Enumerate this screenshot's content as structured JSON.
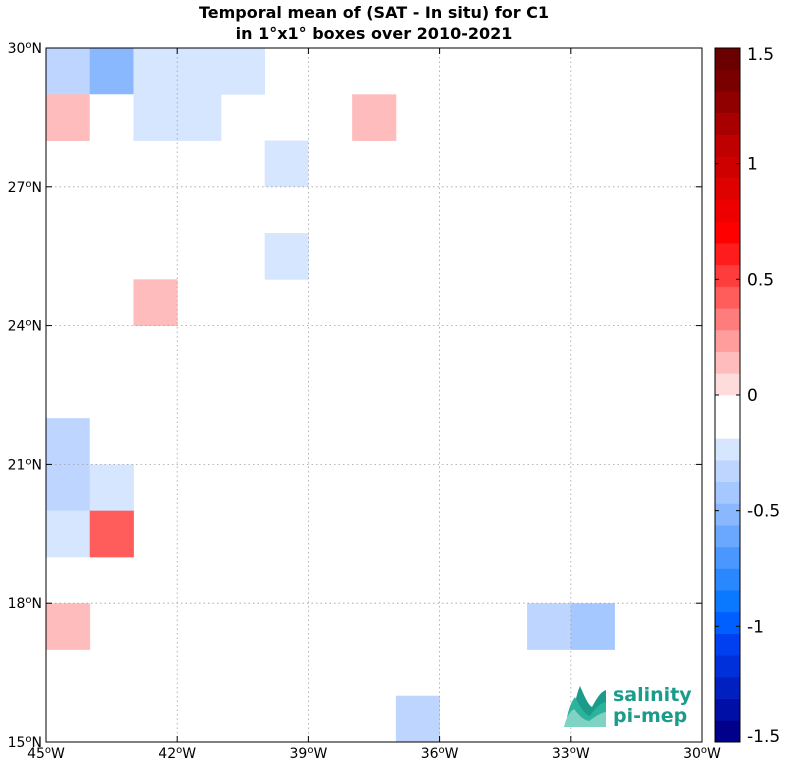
{
  "chart_data": {
    "type": "heatmap",
    "title": [
      "Temporal mean of (SAT - In situ) for C1",
      "in 1°x1° boxes over 2010-2021"
    ],
    "xlim": [
      -45,
      -30
    ],
    "ylim": [
      15,
      30
    ],
    "x_ticks": [
      {
        "value": -45,
        "deg": "45",
        "hemi": "W"
      },
      {
        "value": -42,
        "deg": "42",
        "hemi": "W"
      },
      {
        "value": -39,
        "deg": "39",
        "hemi": "W"
      },
      {
        "value": -36,
        "deg": "36",
        "hemi": "W"
      },
      {
        "value": -33,
        "deg": "33",
        "hemi": "W"
      },
      {
        "value": -30,
        "deg": "30",
        "hemi": "W"
      }
    ],
    "y_ticks": [
      {
        "value": 15,
        "deg": "15",
        "hemi": "N"
      },
      {
        "value": 18,
        "deg": "18",
        "hemi": "N"
      },
      {
        "value": 21,
        "deg": "21",
        "hemi": "N"
      },
      {
        "value": 24,
        "deg": "24",
        "hemi": "N"
      },
      {
        "value": 27,
        "deg": "27",
        "hemi": "N"
      },
      {
        "value": 30,
        "deg": "30",
        "hemi": "N"
      }
    ],
    "grid": true,
    "colorbar": {
      "min": -1.5,
      "max": 1.5,
      "ticks": [
        1.5,
        1,
        0.5,
        0,
        -0.5,
        -1,
        -1.5
      ],
      "tick_labels": [
        "1.5",
        "1",
        "0.5",
        "0",
        "-0.5",
        "-1",
        "-1.5"
      ],
      "colors_low_to_high": [
        "#00008b",
        "#0010a6",
        "#0020c0",
        "#0030da",
        "#0040f0",
        "#0060ff",
        "#0a78ff",
        "#2a88ff",
        "#4a98ff",
        "#6aa8ff",
        "#8ab8ff",
        "#a4c8ff",
        "#bed6ff",
        "#d6e6ff",
        "#ffffff",
        "#ffffff",
        "#ffdcdc",
        "#ffbcbc",
        "#ff9c9c",
        "#ff7c7c",
        "#ff5c5c",
        "#ff3c3c",
        "#ff1c1c",
        "#ff0000",
        "#ef0000",
        "#df0000",
        "#cf0000",
        "#bf0000",
        "#a80000",
        "#900000",
        "#7a0000",
        "#6a0000"
      ]
    },
    "cells": [
      {
        "lon": -45,
        "lat": 29,
        "value": -0.3
      },
      {
        "lon": -44,
        "lat": 29,
        "value": -0.5
      },
      {
        "lon": -43,
        "lat": 29,
        "value": -0.25
      },
      {
        "lon": -42,
        "lat": 29,
        "value": -0.25
      },
      {
        "lon": -41,
        "lat": 29,
        "value": -0.25
      },
      {
        "lon": -45,
        "lat": 28,
        "value": 0.15
      },
      {
        "lon": -44,
        "lat": 28,
        "value": -0.1
      },
      {
        "lon": -43,
        "lat": 28,
        "value": -0.25
      },
      {
        "lon": -42,
        "lat": 28,
        "value": -0.25
      },
      {
        "lon": -38,
        "lat": 28,
        "value": 0.15
      },
      {
        "lon": -40,
        "lat": 27,
        "value": -0.25
      },
      {
        "lon": -39,
        "lat": 27,
        "value": -0.1
      },
      {
        "lon": -31,
        "lat": 27,
        "value": -0.1
      },
      {
        "lon": -40,
        "lat": 26,
        "value": -0.1
      },
      {
        "lon": -32,
        "lat": 26,
        "value": -0.1
      },
      {
        "lon": -40,
        "lat": 25,
        "value": -0.25
      },
      {
        "lon": -32,
        "lat": 25,
        "value": -0.1
      },
      {
        "lon": -43,
        "lat": 24,
        "value": 0.15
      },
      {
        "lon": -41,
        "lat": 24,
        "value": -0.1
      },
      {
        "lon": -34,
        "lat": 24,
        "value": -0.1
      },
      {
        "lon": -44,
        "lat": 23,
        "value": -0.1
      },
      {
        "lon": -37,
        "lat": 23,
        "value": -0.1
      },
      {
        "lon": -33,
        "lat": 23,
        "value": -0.1
      },
      {
        "lon": -43,
        "lat": 22,
        "value": -0.1
      },
      {
        "lon": -42,
        "lat": 22,
        "value": -0.1
      },
      {
        "lon": -41,
        "lat": 22,
        "value": -0.1
      },
      {
        "lon": -38,
        "lat": 22,
        "value": -0.1
      },
      {
        "lon": -34,
        "lat": 22,
        "value": -0.1
      },
      {
        "lon": -45,
        "lat": 21,
        "value": -0.35
      },
      {
        "lon": -44,
        "lat": 21,
        "value": -0.1
      },
      {
        "lon": -37,
        "lat": 21,
        "value": -0.1
      },
      {
        "lon": -33,
        "lat": 21,
        "value": -0.1
      },
      {
        "lon": -45,
        "lat": 20,
        "value": -0.35
      },
      {
        "lon": -44,
        "lat": 20,
        "value": -0.25
      },
      {
        "lon": -34,
        "lat": 20,
        "value": -0.1
      },
      {
        "lon": -45,
        "lat": 19,
        "value": -0.25
      },
      {
        "lon": -44,
        "lat": 19,
        "value": 0.4
      },
      {
        "lon": -40,
        "lat": 18,
        "value": -0.1
      },
      {
        "lon": -39,
        "lat": 18,
        "value": -0.1
      },
      {
        "lon": -45,
        "lat": 17,
        "value": 0.15
      },
      {
        "lon": -42,
        "lat": 17,
        "value": -0.1
      },
      {
        "lon": -41,
        "lat": 17,
        "value": -0.1
      },
      {
        "lon": -34,
        "lat": 17,
        "value": -0.3
      },
      {
        "lon": -33,
        "lat": 17,
        "value": -0.4
      },
      {
        "lon": -43,
        "lat": 16,
        "value": -0.1
      },
      {
        "lon": -42,
        "lat": 16,
        "value": -0.1
      },
      {
        "lon": -36,
        "lat": 16,
        "value": -0.1
      },
      {
        "lon": -44,
        "lat": 15,
        "value": -0.1
      },
      {
        "lon": -43,
        "lat": 15,
        "value": -0.1
      },
      {
        "lon": -37,
        "lat": 15,
        "value": -0.35
      }
    ]
  },
  "logo": {
    "line1": "salinity",
    "line2": "pi-mep",
    "colors": [
      "#1b9c8a",
      "#2db39b",
      "#7fd3c4"
    ]
  }
}
